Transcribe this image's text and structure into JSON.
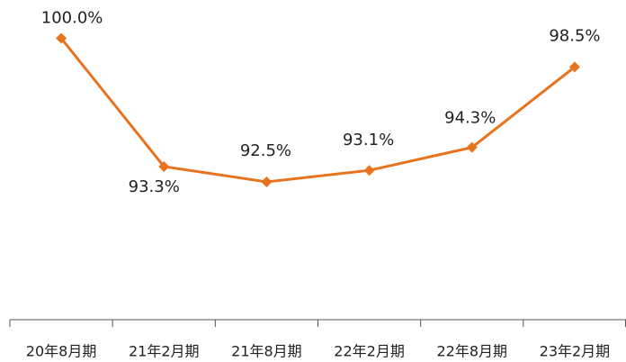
{
  "chart_data": {
    "type": "line",
    "categories": [
      "20年8月期",
      "21年2月期",
      "21年8月期",
      "22年2月期",
      "22年8月期",
      "23年2月期"
    ],
    "series": [
      {
        "color": "#e8731e",
        "values": [
          100.0,
          93.3,
          92.5,
          93.1,
          94.3,
          98.5
        ],
        "value_labels": [
          "100.0%",
          "93.3%",
          "92.5%",
          "93.1%",
          "94.3%",
          "98.5%"
        ]
      }
    ],
    "ylim": [
      85.3,
      102
    ]
  }
}
